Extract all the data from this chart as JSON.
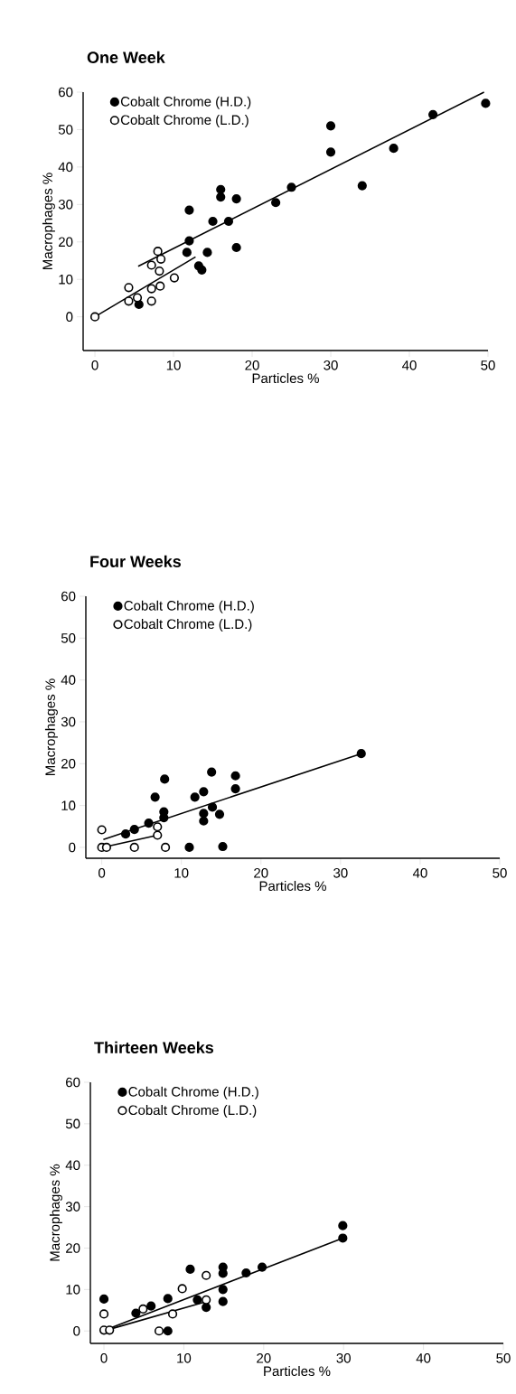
{
  "chart_data": [
    {
      "type": "scatter",
      "title": "One Week",
      "xlabel": "Particles %",
      "ylabel": "Macrophages %",
      "xlim": [
        -1.5,
        50
      ],
      "ylim": [
        -9,
        60
      ],
      "xticks": [
        0,
        10,
        20,
        30,
        40,
        50
      ],
      "yticks": [
        0,
        10,
        20,
        30,
        40,
        50,
        60
      ],
      "legend": "top left",
      "series": [
        {
          "name": "Cobalt Chrome (H.D.)",
          "marker": "circle",
          "color": "#000000",
          "x": [
            30,
            30,
            38,
            34,
            12,
            16,
            16,
            18,
            18,
            23,
            25,
            15,
            17,
            12,
            11.7,
            14.3,
            13.2,
            13.6,
            5.6,
            43,
            49.7
          ],
          "values": [
            51,
            44,
            45,
            35,
            28.5,
            34,
            32,
            31.5,
            18.5,
            30.5,
            34.6,
            25.5,
            25.5,
            20.3,
            17.2,
            17.2,
            13.6,
            12.5,
            3.3,
            54,
            57
          ]
        },
        {
          "name": "Cobalt Chrome (L.D.)",
          "marker": "circle",
          "color": "#ffffff",
          "x": [
            0,
            4.3,
            4.3,
            5.4,
            7.2,
            7.2,
            8.3,
            7.2,
            8,
            8.4,
            8.2,
            10.1
          ],
          "values": [
            0,
            7.8,
            4.2,
            5.1,
            4.2,
            7.5,
            8.2,
            13.8,
            17.5,
            15.4,
            12.2,
            10.4
          ]
        },
        {
          "type": "line",
          "marker": "none",
          "color": "#000000",
          "x": [
            5.5,
            49.5
          ],
          "values": [
            13.5,
            60
          ]
        },
        {
          "type": "line",
          "marker": "none",
          "color": "#000000",
          "x": [
            0,
            12.8
          ],
          "values": [
            0,
            16
          ]
        }
      ]
    },
    {
      "type": "scatter",
      "title": "Four Weeks",
      "xlabel": "Particles %",
      "ylabel": "Macrophages %",
      "xlim": [
        -2,
        50
      ],
      "ylim": [
        -2.6,
        60
      ],
      "xticks": [
        0,
        10,
        20,
        30,
        40,
        50
      ],
      "yticks": [
        0,
        10,
        20,
        30,
        40,
        50,
        60
      ],
      "legend": "top left",
      "series": [
        {
          "name": "Cobalt Chrome (H.D.)",
          "marker": "circle",
          "color": "#000000",
          "x": [
            32.6,
            6.7,
            7.9,
            11.7,
            12.8,
            13.8,
            16.8,
            16.8,
            13.9,
            12.8,
            12.8,
            14.8,
            15.2,
            11,
            7.8,
            7.8,
            5.9,
            4.1,
            3
          ],
          "values": [
            22.4,
            12,
            16.3,
            12,
            13.3,
            18,
            17.1,
            14,
            9.6,
            8.1,
            6.3,
            7.9,
            0.2,
            0,
            8.5,
            7.1,
            5.8,
            4.3,
            3.2
          ]
        },
        {
          "name": "Cobalt Chrome (L.D.)",
          "marker": "circle",
          "color": "#ffffff",
          "x": [
            0,
            0,
            0.6,
            4.1,
            8,
            7,
            7
          ],
          "values": [
            4.2,
            0,
            0,
            0,
            0,
            4.9,
            2.9
          ]
        },
        {
          "type": "line",
          "marker": "none",
          "color": "#000000",
          "x": [
            0.2,
            32.6
          ],
          "values": [
            1.9,
            22.4
          ]
        },
        {
          "type": "line",
          "marker": "none",
          "color": "#000000",
          "x": [
            0.6,
            7
          ],
          "values": [
            0.2,
            2.9
          ]
        }
      ]
    },
    {
      "type": "scatter",
      "title": "Thirteen Weeks",
      "xlabel": "Particles %",
      "ylabel": "Macrophages %",
      "xlim": [
        -1.7,
        50
      ],
      "ylim": [
        -3,
        60
      ],
      "xticks": [
        0,
        10,
        20,
        30,
        40,
        50
      ],
      "yticks": [
        0,
        10,
        20,
        30,
        40,
        50,
        60
      ],
      "legend": "top left",
      "series": [
        {
          "name": "Cobalt Chrome (H.D.)",
          "marker": "circle",
          "color": "#000000",
          "x": [
            29.9,
            29.9,
            0,
            10.8,
            14.9,
            14.9,
            14.9,
            14.9,
            17.8,
            19.8,
            11.7,
            12.8,
            8,
            8,
            4,
            5.9
          ],
          "values": [
            25.4,
            22.4,
            7.7,
            14.9,
            15.4,
            13.9,
            10,
            7.1,
            14,
            15.4,
            7.5,
            5.7,
            7.8,
            0,
            4.3,
            6
          ]
        },
        {
          "name": "Cobalt Chrome (L.D.)",
          "marker": "circle",
          "color": "#ffffff",
          "x": [
            0,
            0,
            0.7,
            6.9,
            4.9,
            8.6,
            9.8,
            12.8,
            12.8
          ],
          "values": [
            4.1,
            0.2,
            0.2,
            0,
            5.3,
            4.1,
            10.2,
            13.4,
            7.5
          ]
        },
        {
          "type": "line",
          "marker": "none",
          "color": "#000000",
          "x": [
            0.5,
            29.9
          ],
          "values": [
            0.5,
            22.4
          ]
        },
        {
          "type": "line",
          "marker": "none",
          "color": "#000000",
          "x": [
            0.5,
            12.8
          ],
          "values": [
            0.3,
            7.1
          ]
        }
      ]
    }
  ]
}
